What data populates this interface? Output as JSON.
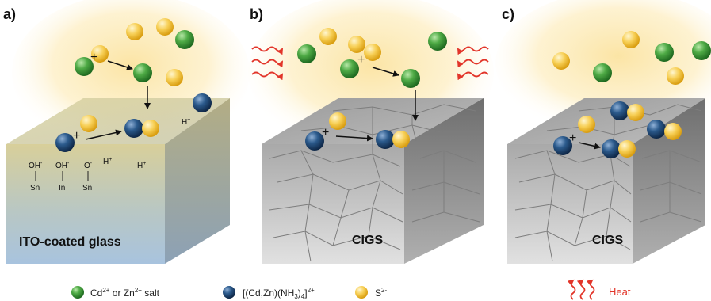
{
  "panels": [
    {
      "letter": "a)",
      "substrate": "ITO-coated glass"
    },
    {
      "letter": "b)",
      "substrate": "CIGS"
    },
    {
      "letter": "c)",
      "substrate": "CIGS"
    }
  ],
  "surface_groups": {
    "oh1": "OH",
    "oh1_sup": "-",
    "oh2": "OH",
    "oh2_sup": "-",
    "o3": "O",
    "o3_sup": "-",
    "sn1": "Sn",
    "in2": "In",
    "sn3": "Sn",
    "h1": "H",
    "h1_sup": "+",
    "h2": "H",
    "h2_sup": "+",
    "h3": "H",
    "h3_sup": "+"
  },
  "plus_sign": "+",
  "legend": {
    "metal_salt": {
      "pre": "Cd",
      "sup1": "2+",
      "mid": " or Zn",
      "sup2": "2+",
      "post": " salt"
    },
    "complex": {
      "pre": "[(Cd,Zn)(NH",
      "sub1": "3",
      "mid": ")",
      "sub2": "4",
      "post": "]",
      "sup": "2+"
    },
    "sulfide": {
      "pre": "S",
      "sup": "2-"
    },
    "heat": "Heat"
  },
  "colors": {
    "green_sphere": "#3d9a3b",
    "blue_sphere": "#224d7c",
    "yellow_sphere": "#f4c94a",
    "solution_glow": "#fbe7a6",
    "heat_arrow": "#e2352a"
  }
}
